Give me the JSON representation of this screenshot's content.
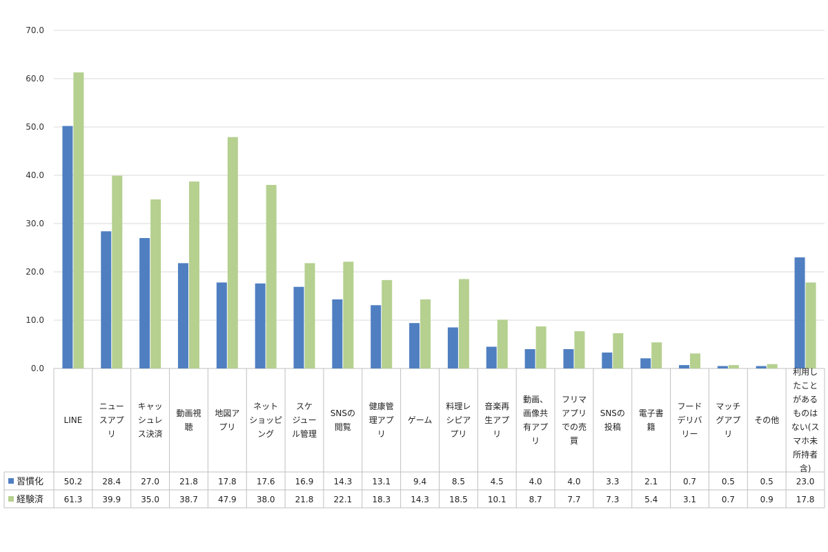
{
  "chart_data": {
    "type": "bar",
    "title": "",
    "xlabel": "",
    "ylabel": "",
    "ylim": [
      0,
      70
    ],
    "yticks": [
      "0.0",
      "10.0",
      "20.0",
      "30.0",
      "40.0",
      "50.0",
      "60.0",
      "70.0"
    ],
    "grid": true,
    "legend": "data-table-left",
    "categories": [
      [
        "LINE"
      ],
      [
        "ニュー",
        "スアプ",
        "リ"
      ],
      [
        "キャッ",
        "シュレ",
        "ス決済"
      ],
      [
        "動画視",
        "聴"
      ],
      [
        "地図ア",
        "プリ"
      ],
      [
        "ネット",
        "ショッピ",
        "ング"
      ],
      [
        "スケ",
        "ジュー",
        "ル管理"
      ],
      [
        "SNSの",
        "閲覧"
      ],
      [
        "健康管",
        "理アプ",
        "リ"
      ],
      [
        "ゲーム"
      ],
      [
        "料理レ",
        "シピア",
        "プリ"
      ],
      [
        "音楽再",
        "生アプ",
        "リ"
      ],
      [
        "動画、",
        "画像共",
        "有アプ",
        "リ"
      ],
      [
        "フリマ",
        "アプリ",
        "での売",
        "買"
      ],
      [
        "SNSの",
        "投稿"
      ],
      [
        "電子書",
        "籍"
      ],
      [
        "フード",
        "デリバ",
        "リー"
      ],
      [
        "マッチ",
        "グアプ",
        "リ"
      ],
      [
        "その他"
      ],
      [
        "利用し",
        "たこと",
        "がある",
        "ものは",
        "ない(ス",
        "マホ未",
        "所持者",
        "含)"
      ]
    ],
    "series": [
      {
        "name": "習慣化",
        "color": "#4f7fc1",
        "values": [
          50.2,
          28.4,
          27.0,
          21.8,
          17.8,
          17.6,
          16.9,
          14.3,
          13.1,
          9.4,
          8.5,
          4.5,
          4.0,
          4.0,
          3.3,
          2.1,
          0.7,
          0.5,
          0.5,
          23.0
        ],
        "labels": [
          "50.2",
          "28.4",
          "27.0",
          "21.8",
          "17.8",
          "17.6",
          "16.9",
          "14.3",
          "13.1",
          "9.4",
          "8.5",
          "4.5",
          "4.0",
          "4.0",
          "3.3",
          "2.1",
          "0.7",
          "0.5",
          "0.5",
          "23.0"
        ]
      },
      {
        "name": "経験済",
        "color": "#b5d08f",
        "values": [
          61.3,
          39.9,
          35.0,
          38.7,
          47.9,
          38.0,
          21.8,
          22.1,
          18.3,
          14.3,
          18.5,
          10.1,
          8.7,
          7.7,
          7.3,
          5.4,
          3.1,
          0.7,
          0.9,
          17.8
        ],
        "labels": [
          "61.3",
          "39.9",
          "35.0",
          "38.7",
          "47.9",
          "38.0",
          "21.8",
          "22.1",
          "18.3",
          "14.3",
          "18.5",
          "10.1",
          "8.7",
          "7.7",
          "7.3",
          "5.4",
          "3.1",
          "0.7",
          "0.9",
          "17.8"
        ]
      }
    ]
  }
}
